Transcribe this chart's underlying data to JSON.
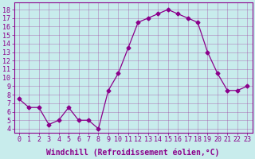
{
  "x": [
    0,
    1,
    2,
    3,
    4,
    5,
    6,
    7,
    8,
    9,
    10,
    11,
    12,
    13,
    14,
    15,
    16,
    17,
    18,
    19,
    20,
    21,
    22,
    23
  ],
  "y": [
    7.5,
    6.5,
    6.5,
    4.5,
    5.0,
    6.5,
    5.0,
    5.0,
    4.0,
    8.5,
    10.5,
    13.5,
    16.5,
    17.0,
    17.5,
    18.0,
    17.5,
    17.0,
    16.5,
    13.0,
    10.5,
    8.5,
    8.5,
    9.0
  ],
  "line_color": "#8b008b",
  "marker": "D",
  "marker_size": 2.5,
  "bg_color": "#c8ecec",
  "grid_color": "#9b3d9b",
  "xlabel": "Windchill (Refroidissement éolien,°C)",
  "xlabel_color": "#8b008b",
  "ylabel_ticks": [
    4,
    5,
    6,
    7,
    8,
    9,
    10,
    11,
    12,
    13,
    14,
    15,
    16,
    17,
    18
  ],
  "ylim": [
    3.5,
    18.8
  ],
  "xlim": [
    -0.5,
    23.5
  ],
  "xticks": [
    0,
    1,
    2,
    3,
    4,
    5,
    6,
    7,
    8,
    9,
    10,
    11,
    12,
    13,
    14,
    15,
    16,
    17,
    18,
    19,
    20,
    21,
    22,
    23
  ],
  "tick_color": "#8b008b",
  "spine_color": "#8b008b",
  "font_size": 6,
  "label_font_size": 7
}
